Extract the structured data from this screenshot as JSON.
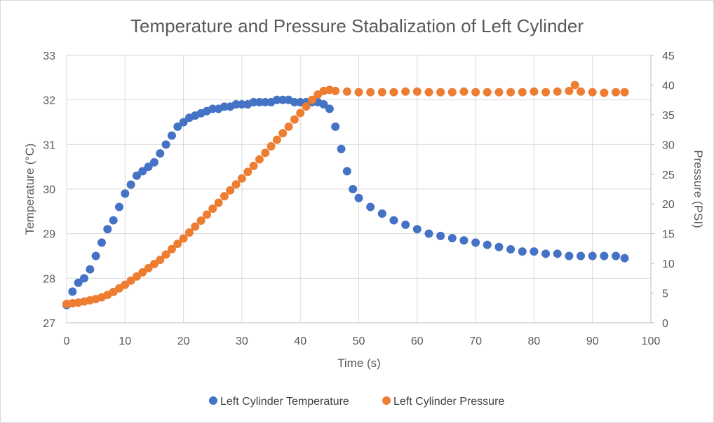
{
  "chart_data": {
    "type": "scatter",
    "title": "Temperature  and Pressure Stabalization of Left Cylinder",
    "xlabel": "Time (s)",
    "ylabel": "Temperature (°C)",
    "y2label": "Pressure (PSI)",
    "xlim": [
      0,
      100
    ],
    "ylim": [
      27,
      33
    ],
    "y2lim": [
      0,
      45
    ],
    "xticks": [
      0,
      10,
      20,
      30,
      40,
      50,
      60,
      70,
      80,
      90,
      100
    ],
    "yticks": [
      27,
      28,
      29,
      30,
      31,
      32,
      33
    ],
    "y2ticks": [
      0,
      5,
      10,
      15,
      20,
      25,
      30,
      35,
      40,
      45
    ],
    "grid": true,
    "legend_position": "bottom",
    "series": [
      {
        "name": "Left Cylinder Temperature",
        "color": "#4472c4",
        "axis": "left",
        "x": [
          0,
          1,
          2,
          3,
          4,
          5,
          6,
          7,
          8,
          9,
          10,
          11,
          12,
          13,
          14,
          15,
          16,
          17,
          18,
          19,
          20,
          21,
          22,
          23,
          24,
          25,
          26,
          27,
          28,
          29,
          30,
          31,
          32,
          33,
          34,
          35,
          36,
          37,
          38,
          39,
          40,
          41,
          42,
          43,
          44,
          45,
          46,
          47,
          48,
          49,
          50,
          52,
          54,
          56,
          58,
          60,
          62,
          64,
          66,
          68,
          70,
          72,
          74,
          76,
          78,
          80,
          82,
          84,
          86,
          88,
          90,
          92,
          94,
          95.5
        ],
        "y": [
          27.4,
          27.7,
          27.9,
          28.0,
          28.2,
          28.5,
          28.8,
          29.1,
          29.3,
          29.6,
          29.9,
          30.1,
          30.3,
          30.4,
          30.5,
          30.6,
          30.8,
          31.0,
          31.2,
          31.4,
          31.5,
          31.6,
          31.65,
          31.7,
          31.75,
          31.8,
          31.8,
          31.85,
          31.85,
          31.9,
          31.9,
          31.9,
          31.95,
          31.95,
          31.95,
          31.95,
          32.0,
          32.0,
          32.0,
          31.95,
          31.95,
          31.95,
          31.95,
          31.95,
          31.9,
          31.8,
          31.4,
          30.9,
          30.4,
          30.0,
          29.8,
          29.6,
          29.45,
          29.3,
          29.2,
          29.1,
          29.0,
          28.95,
          28.9,
          28.85,
          28.8,
          28.75,
          28.7,
          28.65,
          28.6,
          28.6,
          28.55,
          28.55,
          28.5,
          28.5,
          28.5,
          28.5,
          28.5,
          28.45
        ]
      },
      {
        "name": "Left Cylinder Pressure",
        "color": "#ed7d31",
        "axis": "right",
        "x": [
          0,
          1,
          2,
          3,
          4,
          5,
          6,
          7,
          8,
          9,
          10,
          11,
          12,
          13,
          14,
          15,
          16,
          17,
          18,
          19,
          20,
          21,
          22,
          23,
          24,
          25,
          26,
          27,
          28,
          29,
          30,
          31,
          32,
          33,
          34,
          35,
          36,
          37,
          38,
          39,
          40,
          41,
          42,
          43,
          44,
          45,
          46,
          48,
          50,
          52,
          54,
          56,
          58,
          60,
          62,
          64,
          66,
          68,
          70,
          72,
          74,
          76,
          78,
          80,
          82,
          84,
          86,
          87,
          88,
          90,
          92,
          94,
          95.5
        ],
        "y": [
          3.2,
          3.3,
          3.4,
          3.6,
          3.8,
          4.0,
          4.3,
          4.7,
          5.2,
          5.8,
          6.4,
          7.1,
          7.8,
          8.5,
          9.2,
          9.9,
          10.6,
          11.5,
          12.4,
          13.3,
          14.2,
          15.2,
          16.2,
          17.2,
          18.2,
          19.2,
          20.2,
          21.3,
          22.3,
          23.3,
          24.3,
          25.4,
          26.4,
          27.5,
          28.6,
          29.7,
          30.8,
          31.9,
          33.0,
          34.2,
          35.3,
          36.4,
          37.5,
          38.4,
          39.0,
          39.2,
          39.0,
          38.9,
          38.8,
          38.8,
          38.8,
          38.8,
          38.9,
          38.9,
          38.8,
          38.8,
          38.8,
          38.9,
          38.8,
          38.8,
          38.8,
          38.8,
          38.8,
          38.9,
          38.8,
          38.9,
          39.0,
          40.0,
          38.9,
          38.8,
          38.7,
          38.8,
          38.8
        ]
      }
    ]
  }
}
